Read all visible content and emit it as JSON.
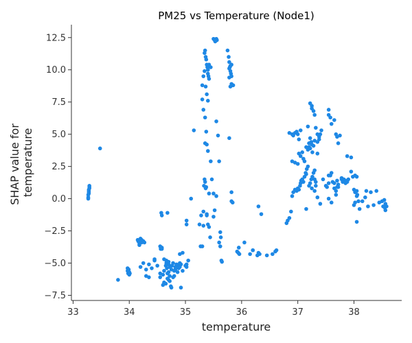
{
  "chart_data": {
    "type": "scatter",
    "title": "PM25 vs Temperature (Node1)",
    "xlabel": "temperature",
    "ylabel": "SHAP value for\ntemperature",
    "xlim": [
      32.97,
      38.85
    ],
    "ylim": [
      -7.9,
      13.5
    ],
    "xticks": [
      33,
      34,
      35,
      36,
      37,
      38
    ],
    "yticks": [
      -7.5,
      -5.0,
      -2.5,
      0.0,
      2.5,
      5.0,
      7.5,
      10.0,
      12.5
    ],
    "xtick_labels": [
      "33",
      "34",
      "35",
      "36",
      "37",
      "38"
    ],
    "ytick_labels": [
      "−7.5",
      "−5.0",
      "−2.5",
      "0.0",
      "2.5",
      "5.0",
      "7.5",
      "10.0",
      "12.5"
    ],
    "point_color": "#1e88e5",
    "grid": false,
    "legend": "none",
    "series": [
      {
        "x": [
          33.27,
          33.27,
          33.27,
          33.28,
          33.28,
          33.28,
          33.29,
          33.29,
          33.29,
          33.28,
          33.48,
          33.8,
          33.97,
          33.97,
          33.98,
          33.99,
          34.0,
          34.0,
          34.01,
          34.15,
          34.16,
          34.18,
          34.2,
          34.22,
          34.25,
          34.18,
          34.22,
          34.27,
          34.2,
          34.25,
          34.3,
          34.35,
          34.4,
          34.45,
          34.45,
          34.5,
          34.55,
          34.3,
          34.35,
          34.55,
          34.55,
          34.56,
          34.57,
          34.58,
          34.6,
          34.6,
          34.62,
          34.62,
          34.65,
          34.65,
          34.66,
          34.67,
          34.68,
          34.68,
          34.7,
          34.7,
          34.7,
          34.72,
          34.72,
          34.72,
          34.74,
          34.75,
          34.75,
          34.76,
          34.78,
          34.78,
          34.8,
          34.8,
          34.82,
          34.82,
          34.84,
          34.86,
          34.88,
          34.88,
          34.9,
          34.9,
          34.92,
          34.92,
          34.95,
          35.0,
          35.02,
          35.02,
          35.05,
          34.9,
          34.95,
          34.62,
          34.66,
          34.7,
          34.58,
          34.58,
          34.68,
          35.02,
          35.02,
          35.1,
          35.15,
          35.25,
          35.27,
          35.28,
          35.3,
          35.32,
          35.32,
          35.33,
          35.34,
          35.35,
          35.35,
          35.36,
          35.37,
          35.38,
          35.38,
          35.4,
          35.42,
          35.42,
          35.44,
          35.34,
          35.35,
          35.36,
          35.37,
          35.38,
          35.39,
          35.4,
          35.41,
          35.42,
          35.36,
          35.38,
          35.4,
          35.3,
          35.32,
          35.34,
          35.4,
          35.42,
          35.45,
          35.3,
          35.32,
          35.35,
          35.37,
          35.38,
          35.4,
          35.45,
          35.47,
          35.5,
          35.5,
          35.52,
          35.53,
          35.54,
          35.55,
          35.56,
          35.5,
          35.52,
          35.55,
          35.55,
          35.58,
          35.6,
          35.62,
          35.63,
          35.6,
          35.62,
          35.64,
          35.65,
          35.75,
          35.77,
          35.78,
          35.79,
          35.8,
          35.81,
          35.82,
          35.78,
          35.8,
          35.82,
          35.78,
          35.8,
          35.82,
          35.84,
          35.85,
          35.82,
          35.84,
          35.78,
          35.82,
          35.92,
          35.94,
          35.95,
          35.96,
          36.05,
          36.15,
          36.2,
          36.28,
          36.3,
          36.32,
          36.2,
          36.3,
          36.35,
          36.45,
          36.55,
          36.6,
          36.62,
          36.8,
          36.82,
          36.85,
          36.88,
          36.9,
          36.92,
          36.95,
          36.98,
          37.0,
          37.02,
          37.04,
          37.05,
          37.06,
          37.08,
          37.1,
          37.12,
          37.14,
          37.15,
          37.16,
          37.18,
          36.9,
          36.95,
          37.0,
          37.02,
          37.05,
          37.08,
          37.1,
          37.12,
          37.15,
          37.18,
          36.85,
          36.9,
          36.92,
          36.95,
          36.98,
          37.0,
          37.02,
          37.05,
          37.18,
          37.2,
          37.2,
          37.22,
          37.22,
          37.24,
          37.25,
          37.26,
          37.28,
          37.3,
          37.2,
          37.22,
          37.24,
          37.26,
          37.28,
          37.3,
          37.25,
          37.32,
          37.3,
          37.32,
          37.35,
          37.38,
          37.4,
          37.42,
          37.35,
          37.38,
          37.22,
          37.25,
          37.28,
          37.3,
          37.32,
          37.35,
          37.4,
          37.45,
          37.5,
          37.52,
          37.55,
          37.58,
          37.6,
          37.62,
          37.65,
          37.68,
          37.55,
          37.58,
          37.6,
          37.65,
          37.68,
          37.7,
          37.72,
          37.75,
          37.78,
          37.8,
          37.65,
          37.7,
          37.72,
          37.78,
          37.82,
          37.85,
          37.88,
          37.9,
          37.95,
          37.98,
          37.68,
          37.72,
          37.85,
          37.88,
          37.95,
          38.0,
          38.02,
          38.05,
          38.05,
          38.06,
          38.0,
          38.02,
          38.05,
          38.1,
          38.15,
          38.2,
          38.22,
          38.25,
          38.3,
          38.35,
          38.4,
          38.45,
          38.5,
          38.52,
          38.54,
          38.55,
          38.56,
          38.58,
          38.56,
          38.02,
          38.05,
          38.08,
          37.15,
          37.35,
          37.55,
          37.6,
          37.7,
          37.25,
          37.3,
          37.55,
          37.55
        ],
        "y": [
          0.0,
          0.1,
          0.3,
          0.5,
          0.6,
          0.7,
          0.8,
          0.9,
          1.0,
          0.4,
          3.9,
          -6.3,
          -5.4,
          -5.6,
          -5.8,
          -5.5,
          -5.9,
          -5.7,
          -5.8,
          -3.2,
          -3.3,
          -3.5,
          -3.1,
          -3.4,
          -3.3,
          -3.6,
          -3.2,
          -3.4,
          -5.3,
          -5.0,
          -6.0,
          -5.1,
          -5.4,
          -4.7,
          -4.8,
          -5.2,
          -3.7,
          -5.5,
          -6.1,
          -5.8,
          -6.1,
          -3.9,
          -1.1,
          -1.3,
          -6.7,
          -5.9,
          -5.6,
          -6.5,
          -5.2,
          -6.6,
          -5.0,
          -5.4,
          -6.2,
          -5.8,
          -6.3,
          -5.1,
          -5.7,
          -6.4,
          -6.0,
          -5.3,
          -6.8,
          -5.5,
          -6.9,
          -5.2,
          -6.1,
          -5.0,
          -5.6,
          -6.0,
          -5.3,
          -5.5,
          -5.1,
          -5.7,
          -5.2,
          -5.4,
          -5.0,
          -5.3,
          -6.9,
          -5.1,
          -5.6,
          -5.2,
          -5.3,
          -5.1,
          -4.8,
          -4.3,
          -4.2,
          -4.7,
          -4.8,
          -4.9,
          -3.8,
          -3.9,
          -1.1,
          -1.7,
          -2.0,
          0.0,
          5.3,
          -2.0,
          -3.7,
          -1.3,
          -3.7,
          -2.1,
          -1.0,
          1.0,
          1.5,
          4.3,
          1.3,
          0.8,
          0.9,
          -1.2,
          -1.3,
          -2.0,
          -2.2,
          0.4,
          -3.0,
          11.3,
          11.5,
          11.0,
          10.8,
          10.4,
          10.2,
          9.7,
          9.5,
          9.3,
          8.7,
          8.1,
          7.6,
          8.8,
          9.5,
          9.9,
          10.0,
          10.4,
          10.2,
          7.7,
          6.9,
          6.3,
          5.2,
          4.2,
          3.7,
          2.9,
          1.5,
          0.4,
          12.4,
          12.3,
          12.2,
          12.3,
          12.4,
          12.3,
          -1.4,
          -0.9,
          0.2,
          6.0,
          4.9,
          2.9,
          -2.6,
          -3.0,
          -3.4,
          -3.7,
          -4.8,
          -4.9,
          11.5,
          11.0,
          10.6,
          10.2,
          9.9,
          9.7,
          9.5,
          9.4,
          8.7,
          8.9,
          10.1,
          10.3,
          10.4,
          8.8,
          8.8,
          0.5,
          -0.3,
          4.7,
          -0.2,
          -4.1,
          -4.2,
          -3.8,
          -4.3,
          -3.4,
          -4.3,
          -4.0,
          -4.4,
          -4.2,
          -4.3,
          -4.0,
          -0.6,
          -1.2,
          -4.4,
          -4.3,
          -4.1,
          -4.0,
          -1.9,
          -1.7,
          -1.5,
          -1.0,
          0.2,
          0.5,
          0.7,
          0.6,
          0.8,
          0.7,
          1.0,
          1.2,
          1.4,
          1.5,
          1.3,
          1.7,
          2.0,
          1.9,
          2.3,
          2.5,
          2.9,
          2.8,
          2.7,
          3.5,
          3.3,
          3.6,
          3.1,
          2.9,
          4.0,
          3.8,
          5.1,
          5.0,
          4.9,
          5.1,
          5.2,
          5.0,
          4.6,
          5.3,
          5.6,
          4.3,
          4.0,
          4.7,
          3.9,
          4.4,
          4.2,
          3.6,
          4.1,
          4.5,
          1.0,
          1.2,
          1.5,
          1.7,
          2.0,
          2.2,
          0.8,
          1.0,
          1.5,
          1.3,
          3.5,
          4.8,
          5.0,
          5.3,
          4.4,
          4.6,
          7.4,
          7.0,
          6.8,
          6.5,
          5.5,
          5.0,
          -0.4,
          1.5,
          1.0,
          0.9,
          1.2,
          1.8,
          2.0,
          1.3,
          0.8,
          0.6,
          6.9,
          6.3,
          5.8,
          6.1,
          5.0,
          4.8,
          4.3,
          4.9,
          1.5,
          1.3,
          1.2,
          1.4,
          1.1,
          1.6,
          1.5,
          1.4,
          1.3,
          1.5,
          2.1,
          1.7,
          0.3,
          0.9,
          1.2,
          3.3,
          3.2,
          0.7,
          0.5,
          0.6,
          0.2,
          0.3,
          -0.5,
          -0.3,
          1.7,
          -0.8,
          -0.2,
          0.1,
          0.6,
          -0.6,
          0.5,
          -0.5,
          0.6,
          -0.3,
          -0.2,
          -0.6,
          -0.1,
          -0.7,
          -0.4,
          -0.6,
          -0.9,
          1.8,
          -1.8,
          -0.2,
          -0.8,
          0.1,
          0.0,
          -0.3,
          0.9,
          7.2,
          0.6,
          6.5,
          1.8
        ]
      }
    ]
  }
}
